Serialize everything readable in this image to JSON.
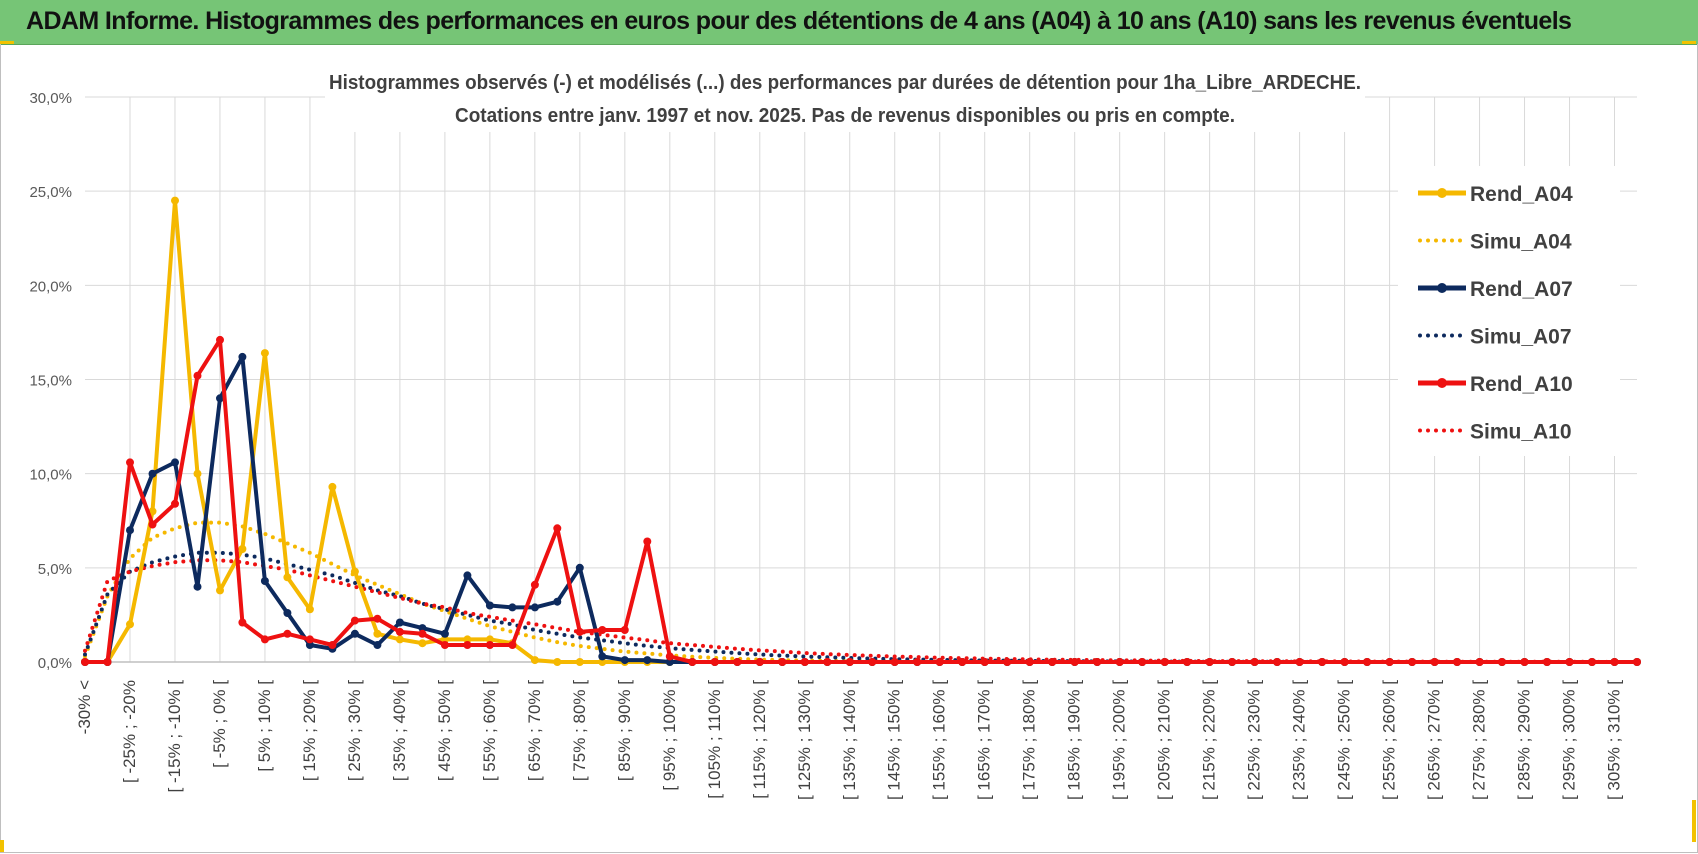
{
  "header": {
    "title": "ADAM Informe. Histogrammes des performances en euros pour des détentions de 4 ans (A04) à 10 ans (A10) sans les revenus éventuels"
  },
  "colors": {
    "header_bg": "#76c576",
    "A04": "#f5b800",
    "A07": "#0d2a5e",
    "A10": "#ee1111",
    "grid": "#d9d9d9"
  },
  "chart_data": {
    "type": "line",
    "title": "Histogrammes observés (-) et modélisés (...) des performances par durées de détention pour 1ha_Libre_ARDECHE.",
    "subtitle": "Cotations entre janv. 1997 et nov. 2025. Pas de revenus disponibles ou pris en compte.",
    "xlabel": "",
    "ylabel": "",
    "ylim": [
      0,
      30
    ],
    "yticks": [
      "0,0%",
      "5,0%",
      "10,0%",
      "15,0%",
      "20,0%",
      "25,0%",
      "30,0%"
    ],
    "grid": true,
    "legend_position": "right",
    "categories": [
      "-30% <",
      "",
      "[ -25% ; -20%",
      "",
      "[ -15% ; -10% [",
      "",
      "[ -5% ; 0% [",
      "",
      "[ 5% ; 10% [",
      "",
      "[ 15% ; 20% [",
      "",
      "[ 25% ; 30% [",
      "",
      "[ 35% ; 40% [",
      "",
      "[ 45% ; 50% [",
      "",
      "[ 55% ; 60% [",
      "",
      "[ 65% ; 70% [",
      "",
      "[ 75% ; 80% [",
      "",
      "[ 85% ; 90% [",
      "",
      "[ 95% ; 100% [",
      "",
      "[ 105% ; 110% [",
      "",
      "[ 115% ; 120% [",
      "",
      "[ 125% ; 130% [",
      "",
      "[ 135% ; 140% [",
      "",
      "[ 145% ; 150% [",
      "",
      "[ 155% ; 160% [",
      "",
      "[ 165% ; 170% [",
      "",
      "[ 175% ; 180% [",
      "",
      "[ 185% ; 190% [",
      "",
      "[ 195% ; 200% [",
      "",
      "[ 205% ; 210% [",
      "",
      "[ 215% ; 220% [",
      "",
      "[ 225% ; 230% [",
      "",
      "[ 235% ; 240% [",
      "",
      "[ 245% ; 250% [",
      "",
      "[ 255% ; 260% [",
      "",
      "[ 265% ; 270% [",
      "",
      "[ 275% ; 280% [",
      "",
      "[ 285% ; 290% [",
      "",
      "[ 295% ; 300% [",
      "",
      "[ 305% ; 310% [",
      ""
    ],
    "series": [
      {
        "name": "Rend_A04",
        "style": "solid",
        "color": "#f5b800",
        "values": [
          0,
          0,
          2.0,
          8.0,
          24.5,
          10.0,
          3.8,
          6.0,
          16.4,
          4.5,
          2.8,
          9.3,
          4.8,
          1.5,
          1.2,
          1.0,
          1.2,
          1.2,
          1.2,
          1.0,
          0.1,
          0,
          0,
          0,
          0,
          0,
          0,
          0,
          0,
          0,
          0,
          0,
          0,
          0,
          0,
          0,
          0,
          0,
          0,
          0,
          0,
          0,
          0,
          0,
          0,
          0,
          0,
          0,
          0,
          0,
          0,
          0,
          0,
          0,
          0,
          0,
          0,
          0,
          0,
          0,
          0,
          0,
          0,
          0,
          0,
          0,
          0,
          0,
          0,
          0
        ]
      },
      {
        "name": "Simu_A04",
        "style": "dotted",
        "color": "#f5b800",
        "values": [
          0.3,
          3.5,
          5.5,
          6.6,
          7.1,
          7.4,
          7.4,
          7.2,
          6.8,
          6.3,
          5.8,
          5.2,
          4.6,
          4.1,
          3.6,
          3.1,
          2.7,
          2.3,
          1.9,
          1.6,
          1.3,
          1.05,
          0.85,
          0.7,
          0.55,
          0.45,
          0.35,
          0.28,
          0.22,
          0.17,
          0.13,
          0.1,
          0.08,
          0.06,
          0.05,
          0.04,
          0.03,
          0.02,
          0.02,
          0.01,
          0.01,
          0.01,
          0.01,
          0,
          0,
          0,
          0,
          0,
          0,
          0,
          0,
          0,
          0,
          0,
          0,
          0,
          0,
          0,
          0,
          0,
          0,
          0,
          0,
          0,
          0,
          0,
          0,
          0,
          0,
          0
        ]
      },
      {
        "name": "Rend_A07",
        "style": "solid",
        "color": "#0d2a5e",
        "values": [
          0,
          0,
          7.0,
          10.0,
          10.6,
          4.0,
          14.0,
          16.2,
          4.3,
          2.6,
          0.9,
          0.7,
          1.5,
          0.9,
          2.1,
          1.8,
          1.5,
          4.6,
          3.0,
          2.9,
          2.9,
          3.2,
          5.0,
          0.3,
          0.1,
          0.1,
          0,
          0,
          0,
          0,
          0,
          0,
          0,
          0,
          0,
          0,
          0,
          0,
          0,
          0,
          0,
          0,
          0,
          0,
          0,
          0,
          0,
          0,
          0,
          0,
          0,
          0,
          0,
          0,
          0,
          0,
          0,
          0,
          0,
          0,
          0,
          0,
          0,
          0,
          0,
          0,
          0,
          0,
          0,
          0
        ]
      },
      {
        "name": "Simu_A07",
        "style": "dotted",
        "color": "#0d2a5e",
        "values": [
          0.4,
          3.6,
          4.8,
          5.3,
          5.6,
          5.8,
          5.8,
          5.7,
          5.5,
          5.2,
          4.9,
          4.6,
          4.2,
          3.8,
          3.5,
          3.1,
          2.8,
          2.5,
          2.2,
          2.0,
          1.7,
          1.5,
          1.3,
          1.15,
          1.0,
          0.85,
          0.74,
          0.64,
          0.55,
          0.47,
          0.4,
          0.34,
          0.29,
          0.25,
          0.21,
          0.18,
          0.15,
          0.13,
          0.11,
          0.09,
          0.08,
          0.07,
          0.06,
          0.05,
          0.04,
          0.03,
          0.03,
          0.02,
          0.02,
          0.02,
          0.01,
          0.01,
          0.01,
          0.01,
          0.01,
          0,
          0,
          0,
          0,
          0,
          0,
          0,
          0,
          0,
          0,
          0,
          0,
          0,
          0,
          0
        ]
      },
      {
        "name": "Rend_A10",
        "style": "solid",
        "color": "#ee1111",
        "values": [
          0,
          0,
          10.6,
          7.3,
          8.4,
          15.2,
          17.1,
          2.1,
          1.2,
          1.5,
          1.2,
          0.9,
          2.2,
          2.3,
          1.6,
          1.5,
          0.9,
          0.9,
          0.9,
          0.9,
          4.1,
          7.1,
          1.6,
          1.7,
          1.7,
          6.4,
          0.3,
          0,
          0,
          0,
          0,
          0,
          0,
          0,
          0,
          0,
          0,
          0,
          0,
          0,
          0,
          0,
          0,
          0,
          0,
          0,
          0,
          0,
          0,
          0,
          0,
          0,
          0,
          0,
          0,
          0,
          0,
          0,
          0,
          0,
          0,
          0,
          0,
          0,
          0,
          0,
          0,
          0,
          0,
          0
        ]
      },
      {
        "name": "Simu_A10",
        "style": "dotted",
        "color": "#ee1111",
        "values": [
          0.6,
          4.3,
          4.8,
          5.1,
          5.3,
          5.4,
          5.4,
          5.3,
          5.1,
          4.9,
          4.6,
          4.3,
          4.0,
          3.7,
          3.4,
          3.1,
          2.9,
          2.6,
          2.4,
          2.2,
          2.0,
          1.8,
          1.6,
          1.45,
          1.3,
          1.15,
          1.0,
          0.9,
          0.8,
          0.7,
          0.62,
          0.55,
          0.48,
          0.42,
          0.37,
          0.33,
          0.29,
          0.26,
          0.23,
          0.2,
          0.18,
          0.16,
          0.14,
          0.12,
          0.11,
          0.1,
          0.09,
          0.08,
          0.07,
          0.06,
          0.05,
          0.05,
          0.04,
          0.04,
          0.03,
          0.03,
          0.03,
          0.02,
          0.02,
          0.02,
          0.02,
          0.01,
          0.01,
          0.01,
          0.01,
          0.01,
          0.01,
          0.01,
          0,
          0
        ]
      }
    ]
  }
}
